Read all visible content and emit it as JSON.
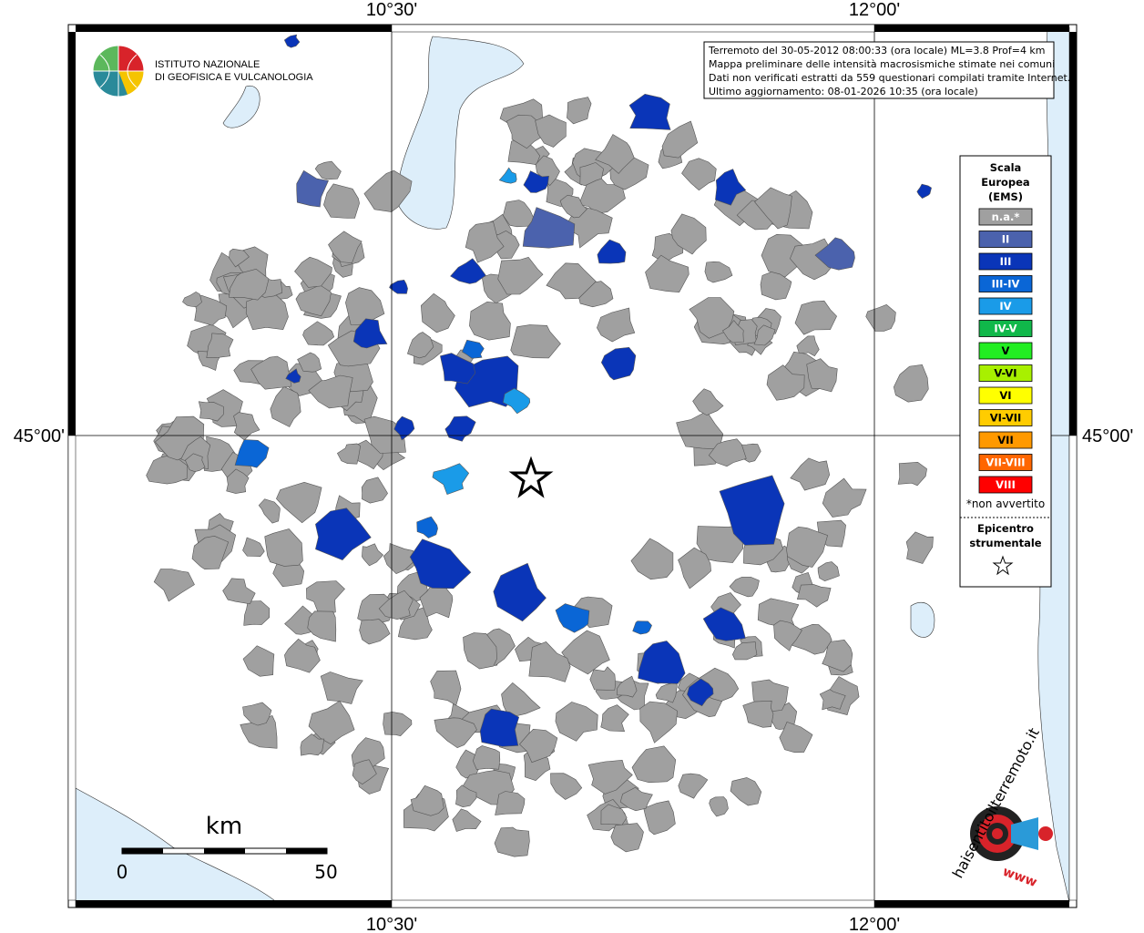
{
  "graticule": {
    "lon": [
      "10°30'",
      "12°00'"
    ],
    "lat": [
      "45°00'"
    ]
  },
  "institute": [
    "ISTITUTO NAZIONALE",
    "DI GEOFISICA E VULCANOLOGIA"
  ],
  "info": [
    "Terremoto del 30-05-2012 08:00:33 (ora locale) ML=3.8 Prof=4 km",
    "Mappa preliminare delle intensità macrosismiche stimate nei comuni",
    "Dati non verificati estratti da 559 questionari compilati tramite Internet.",
    "Ultimo aggiornamento: 08-01-2026 10:35 (ora locale)"
  ],
  "legend": {
    "title": [
      "Scala",
      "Europea",
      "(EMS)"
    ],
    "classes": [
      {
        "label": "n.a.*",
        "color": "#a0a0a0"
      },
      {
        "label": "II",
        "color": "#4b62ad"
      },
      {
        "label": "III",
        "color": "#0a35b8"
      },
      {
        "label": "III-IV",
        "color": "#0a66d6"
      },
      {
        "label": "IV",
        "color": "#1a9be8"
      },
      {
        "label": "IV-V",
        "color": "#10b84a"
      },
      {
        "label": "V",
        "color": "#22ee22"
      },
      {
        "label": "V-VI",
        "color": "#a8f000"
      },
      {
        "label": "VI",
        "color": "#ffff00"
      },
      {
        "label": "VI-VII",
        "color": "#ffcc00"
      },
      {
        "label": "VII",
        "color": "#ff9900"
      },
      {
        "label": "VII-VIII",
        "color": "#ff6600"
      },
      {
        "label": "VIII",
        "color": "#ff0000"
      }
    ],
    "note": "*non avvertito",
    "epicenter": [
      "Epicentro",
      "strumentale"
    ]
  },
  "scale_bar": {
    "unit": "km",
    "ticks": [
      0,
      50
    ]
  },
  "logo": {
    "site": "haisentitoilterremoto.it",
    "www": "www"
  }
}
